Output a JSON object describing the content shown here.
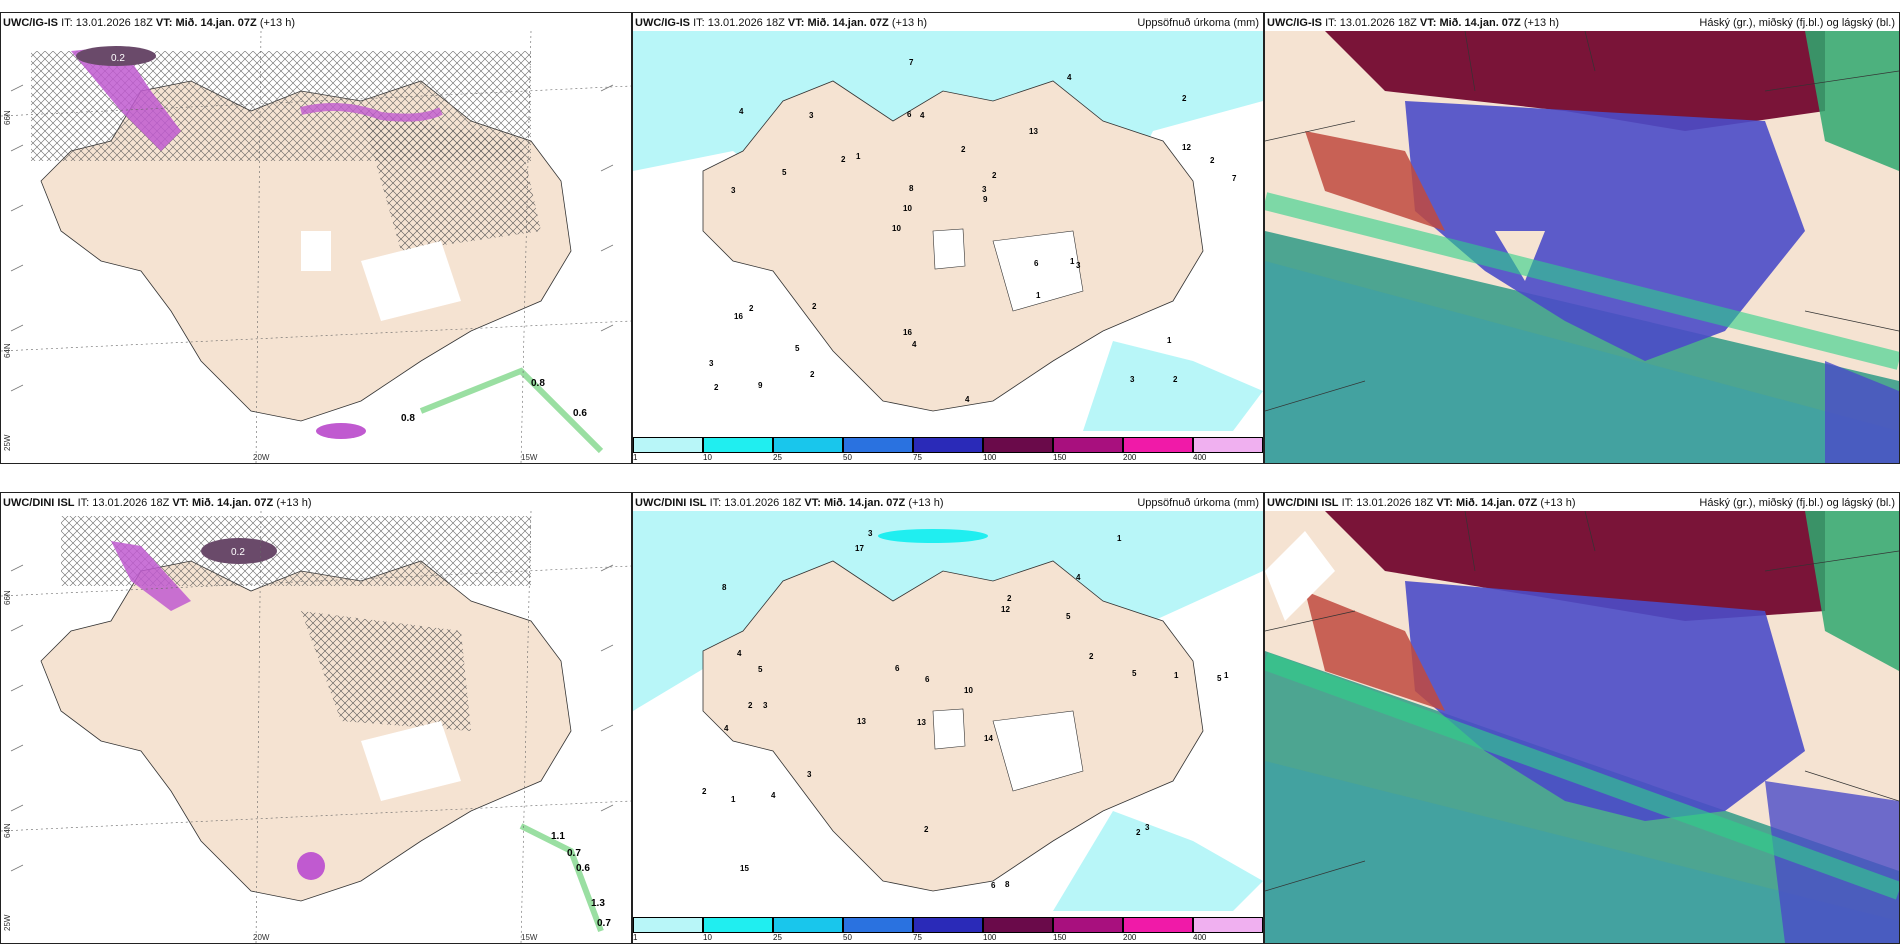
{
  "panels": [
    {
      "model": "UWC/IG-IS",
      "it_label": "IT:",
      "it": "13.01.2026 18Z",
      "vt_label": "VT:",
      "vt": "Mið. 14.jan. 07Z",
      "lead": "(+13 h)",
      "title": ""
    },
    {
      "model": "UWC/IG-IS",
      "it_label": "IT:",
      "it": "13.01.2026 18Z",
      "vt_label": "VT:",
      "vt": "Mið. 14.jan. 07Z",
      "lead": "(+13 h)",
      "title": "Uppsöfnuð úrkoma (mm)"
    },
    {
      "model": "UWC/IG-IS",
      "it_label": "IT:",
      "it": "13.01.2026 18Z",
      "vt_label": "VT:",
      "vt": "Mið. 14.jan. 07Z",
      "lead": "(+13 h)",
      "title": "Háský (gr.), miðský (fj.bl.) og lágský (bl.)"
    },
    {
      "model": "UWC/DINI ISL",
      "it_label": "IT:",
      "it": "13.01.2026 18Z",
      "vt_label": "VT:",
      "vt": "Mið. 14.jan. 07Z",
      "lead": "(+13 h)",
      "title": ""
    },
    {
      "model": "UWC/DINI ISL",
      "it_label": "IT:",
      "it": "13.01.2026 18Z",
      "vt_label": "VT:",
      "vt": "Mið. 14.jan. 07Z",
      "lead": "(+13 h)",
      "title": "Uppsöfnuð úrkoma (mm)"
    },
    {
      "model": "UWC/DINI ISL",
      "it_label": "IT:",
      "it": "13.01.2026 18Z",
      "vt_label": "VT:",
      "vt": "Mið. 14.jan. 07Z",
      "lead": "(+13 h)",
      "title": "Háský (gr.), miðský (fj.bl.) og lágský (bl.)"
    }
  ],
  "axis_labels": {
    "lon_20w": "20W",
    "lon_15w": "15W",
    "lat_66n": "66N",
    "lat_64n": "64N",
    "lat_25w": "25W"
  },
  "precip_colorbar": {
    "labels": [
      "1",
      "10",
      "25",
      "50",
      "75",
      "100",
      "150",
      "200",
      "400"
    ],
    "colors": [
      "#b8f6f8",
      "#20eef0",
      "#19c6ec",
      "#2a72e0",
      "#2a2ab8",
      "#6a0a4a",
      "#a8107e",
      "#f01aa8",
      "#f0b0f0"
    ]
  },
  "icing_top_labels": [
    "0.2",
    "0.8",
    "0.6",
    "0.8"
  ],
  "icing_bottom_labels": [
    "0.2",
    "1.1",
    "0.7",
    "0.6",
    "1.3",
    "0.7"
  ],
  "precip_top_values": [
    "2",
    "3",
    "2",
    "10",
    "13",
    "9",
    "6",
    "2",
    "2",
    "1",
    "3",
    "5",
    "4",
    "2",
    "3",
    "4",
    "7",
    "7",
    "6",
    "12",
    "10",
    "16",
    "8",
    "3",
    "4",
    "2",
    "3",
    "1",
    "1",
    "4",
    "2",
    "5",
    "1",
    "2",
    "2",
    "3",
    "2",
    "4",
    "9",
    "16"
  ],
  "precip_bottom_values": [
    "3",
    "4",
    "5",
    "13",
    "14",
    "3",
    "8",
    "5",
    "4",
    "12",
    "10",
    "15",
    "17",
    "13",
    "6",
    "8",
    "2",
    "1",
    "2",
    "3",
    "5",
    "2",
    "1",
    "1",
    "2",
    "4",
    "6",
    "5",
    "3",
    "1",
    "2",
    "2",
    "4",
    "6"
  ],
  "colors": {
    "land": "#f5e3d2",
    "precip_light": "#b8f6f8",
    "cloud_high": "#7a1438",
    "cloud_mid": "#4b4bc8",
    "cloud_low": "#2f9a86",
    "icing": "#c05ad0"
  }
}
